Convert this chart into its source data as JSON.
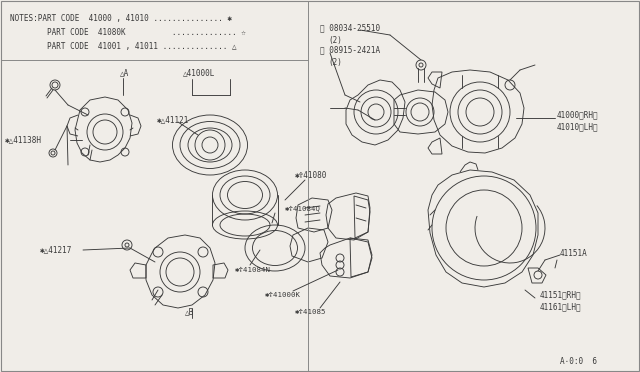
{
  "bg": "#f0ede8",
  "lc": "#3a3a3a",
  "lw": 0.65,
  "title_note_lines": [
    "NOTES:PART CODE  41000 , 41010 .............. ✱",
    "        PART CODE  41080K          ............. ☆",
    "        PART CODE  41001 , 41011 .............. △"
  ],
  "fig_w": 6.4,
  "fig_h": 3.72,
  "dpi": 100,
  "bottom_right_text": "A⋅0:0  6"
}
